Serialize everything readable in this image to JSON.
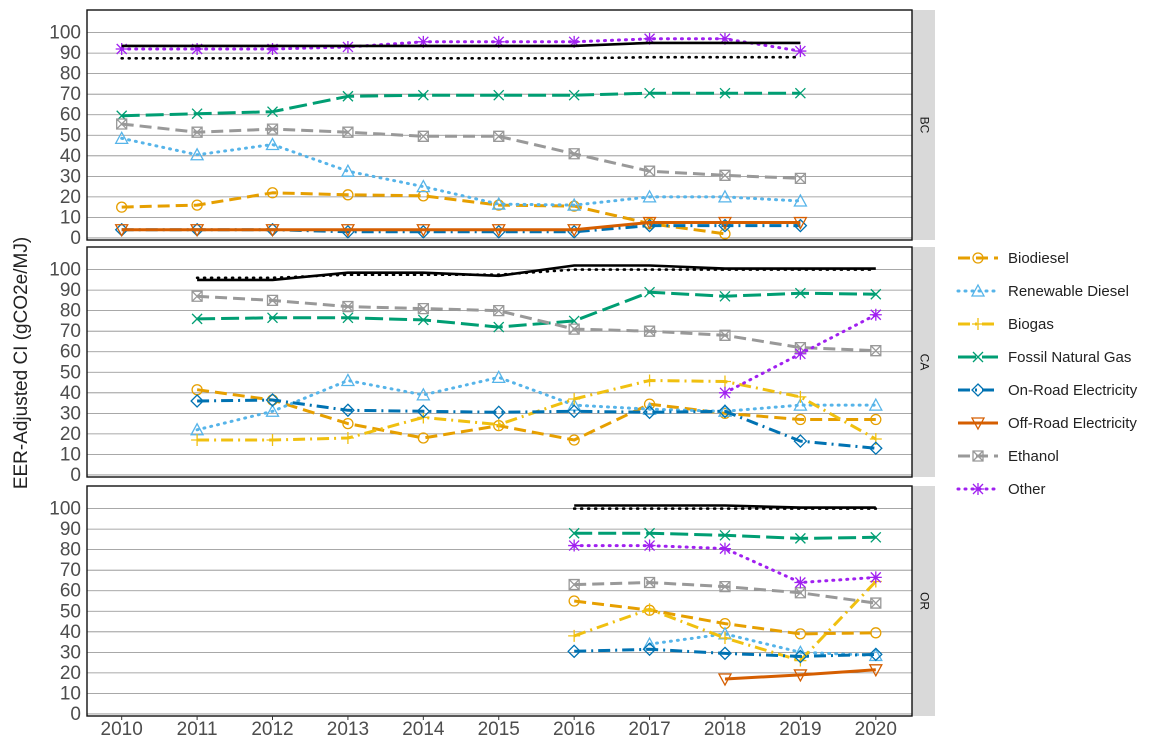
{
  "chart_data": {
    "type": "line",
    "ylabel": "EER-Adjusted CI (gCO2e/MJ)",
    "facets": [
      "BC",
      "CA",
      "OR"
    ],
    "x": [
      2010,
      2011,
      2012,
      2013,
      2014,
      2015,
      2016,
      2017,
      2018,
      2019,
      2020
    ],
    "xlim": [
      2009.54,
      2020.48
    ],
    "xticks": [
      2010,
      2011,
      2012,
      2013,
      2014,
      2015,
      2016,
      2017,
      2018,
      2019,
      2020
    ],
    "ylim": [
      -1,
      111
    ],
    "yticks": [
      0,
      10,
      20,
      30,
      40,
      50,
      60,
      70,
      80,
      90,
      100
    ],
    "grid": true,
    "legend": "right",
    "series": [
      {
        "name": "Biodiesel",
        "color": "#E69F00",
        "linestyle": "dashed",
        "marker": "circle",
        "values": [
          [
            15,
            16,
            22,
            21,
            20.5,
            16,
            15.5,
            7,
            2,
            null,
            null
          ],
          [
            null,
            41.5,
            36.5,
            25,
            18,
            24,
            17,
            34.5,
            30,
            27,
            27
          ],
          [
            null,
            null,
            null,
            null,
            null,
            null,
            55,
            50.5,
            44,
            39,
            39.5
          ]
        ]
      },
      {
        "name": "Renewable Diesel",
        "color": "#56B4E9",
        "linestyle": "dotted",
        "marker": "triangle",
        "values": [
          [
            48.5,
            40.5,
            45.5,
            32.5,
            25,
            16.5,
            16,
            20,
            20,
            18,
            null
          ],
          [
            null,
            22,
            31,
            46,
            39,
            47.5,
            34,
            32,
            31,
            34,
            34
          ],
          [
            null,
            null,
            null,
            null,
            null,
            null,
            null,
            34,
            39,
            30,
            28.5
          ]
        ]
      },
      {
        "name": "Biogas",
        "color": "#F0C010",
        "linestyle": "dashdot",
        "marker": "plus",
        "values": [
          [
            null,
            null,
            null,
            null,
            null,
            null,
            null,
            null,
            null,
            null,
            null
          ],
          [
            null,
            17,
            17,
            18,
            28,
            24.5,
            37,
            46,
            45.5,
            38,
            17.5
          ],
          [
            null,
            null,
            null,
            null,
            null,
            null,
            38,
            51,
            37,
            26,
            64.5
          ]
        ]
      },
      {
        "name": "Fossil Natural Gas",
        "color": "#009E73",
        "linestyle": "longdash",
        "marker": "cross",
        "values": [
          [
            59.5,
            60.5,
            61.5,
            69,
            69.5,
            69.5,
            69.5,
            70.5,
            70.5,
            70.5,
            null
          ],
          [
            null,
            76,
            76.5,
            76.5,
            75.5,
            72,
            75,
            89,
            87,
            88.5,
            88
          ],
          [
            null,
            null,
            null,
            null,
            null,
            null,
            88,
            88,
            87,
            85.5,
            86
          ]
        ]
      },
      {
        "name": "On-Road Electricity",
        "color": "#0072B2",
        "linestyle": "dashdot",
        "marker": "diamond",
        "values": [
          [
            4,
            4,
            4,
            3,
            3,
            3,
            3,
            6,
            6,
            6,
            null
          ],
          [
            null,
            36,
            36.5,
            31.5,
            31,
            30.5,
            31,
            30.5,
            31,
            16.5,
            13
          ],
          [
            null,
            null,
            null,
            null,
            null,
            null,
            30.5,
            31.5,
            29.5,
            28,
            29
          ]
        ]
      },
      {
        "name": "Off-Road Electricity",
        "color": "#D55E00",
        "linestyle": "solid",
        "marker": "triangle-down",
        "values": [
          [
            4,
            4,
            4,
            4,
            4,
            4,
            4,
            7.5,
            7.5,
            7.5,
            null
          ],
          [
            null,
            null,
            null,
            null,
            null,
            null,
            null,
            null,
            null,
            null,
            null
          ],
          [
            null,
            null,
            null,
            null,
            null,
            null,
            null,
            null,
            17,
            19,
            21.5
          ]
        ]
      },
      {
        "name": "Ethanol",
        "color": "#999999",
        "linestyle": "dashed",
        "marker": "square-cross",
        "values": [
          [
            55.5,
            51.5,
            53,
            51.5,
            49.5,
            49.5,
            41,
            32.5,
            30.5,
            29,
            null
          ],
          [
            null,
            87,
            85,
            82,
            81,
            80,
            71,
            70,
            68,
            62,
            60.5
          ],
          [
            null,
            null,
            null,
            null,
            null,
            null,
            63,
            64,
            62,
            59,
            54
          ]
        ]
      },
      {
        "name": "Other",
        "color": "#A020F0",
        "linestyle": "dotted",
        "marker": "asterisk",
        "values": [
          [
            92,
            92,
            92,
            93,
            95.5,
            95.5,
            95.5,
            97,
            97,
            91,
            null
          ],
          [
            null,
            null,
            null,
            null,
            null,
            null,
            null,
            null,
            40,
            59,
            78
          ],
          [
            null,
            null,
            null,
            null,
            null,
            null,
            82,
            82,
            80.5,
            64,
            66.5
          ]
        ]
      },
      {
        "color": "#000000",
        "linestyle": "solid",
        "marker": "none",
        "values": [
          [
            93.5,
            93.5,
            93.5,
            93.5,
            93.5,
            93.5,
            93.5,
            95,
            95,
            95,
            null
          ],
          [
            null,
            95,
            95,
            98.5,
            98.5,
            97,
            102,
            102,
            100.5,
            100.5,
            100.5
          ],
          [
            null,
            null,
            null,
            null,
            null,
            null,
            101.5,
            101.5,
            101.5,
            100.5,
            100.5
          ]
        ]
      },
      {
        "color": "#000000",
        "linestyle": "dotted",
        "marker": "none",
        "values": [
          [
            87.5,
            87.5,
            87.5,
            87.5,
            87.5,
            87.5,
            87.5,
            88,
            88,
            88,
            null
          ],
          [
            null,
            96,
            96,
            97.5,
            97.5,
            97.5,
            100,
            100,
            100,
            100,
            100
          ],
          [
            null,
            null,
            null,
            null,
            null,
            null,
            100,
            100,
            100,
            100,
            100
          ]
        ]
      }
    ]
  }
}
